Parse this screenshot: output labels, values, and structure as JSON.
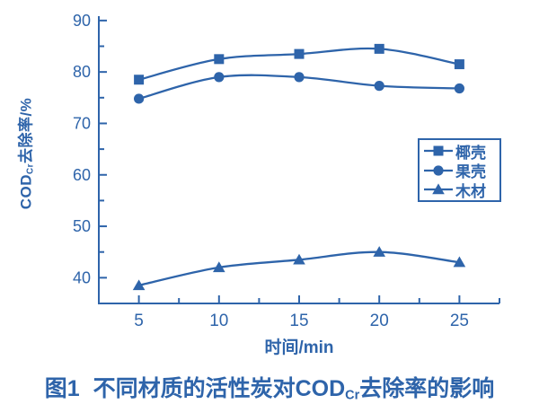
{
  "colors": {
    "accent": "#2e64aa",
    "background": "#ffffff"
  },
  "figure": {
    "caption": {
      "label": "图1",
      "text_before_sub": "不同材质的活性炭对COD",
      "sub": "Cr",
      "text_after_sub": "去除率的影响"
    }
  },
  "chart_data": {
    "type": "line",
    "title": "",
    "xlabel": "时间/min",
    "ylabel": {
      "prefix": "COD",
      "sub": "Cr",
      "suffix": "去除率/%"
    },
    "x": [
      5,
      10,
      15,
      20,
      25
    ],
    "series": [
      {
        "name": "椰壳",
        "marker": "square",
        "values": [
          78.5,
          82.5,
          83.5,
          84.5,
          81.5
        ]
      },
      {
        "name": "果壳",
        "marker": "circle",
        "values": [
          74.8,
          79.0,
          79.0,
          77.3,
          76.8
        ]
      },
      {
        "name": "木材",
        "marker": "triangle",
        "values": [
          38.5,
          42.0,
          43.5,
          45.0,
          43.0
        ]
      }
    ],
    "xlim": [
      2.5,
      27.5
    ],
    "ylim": [
      35,
      90.5
    ],
    "x_major_ticks": [
      5,
      10,
      15,
      20,
      25
    ],
    "x_minor_ticks": [
      7.5,
      12.5,
      17.5,
      22.5,
      27.5
    ],
    "y_major_ticks": [
      40,
      50,
      60,
      70,
      80,
      90
    ],
    "y_minor_ticks": [
      45,
      55,
      65,
      75,
      85
    ],
    "grid": false,
    "legend_position": "inside-right-middle",
    "line_color": "#2e64aa"
  }
}
